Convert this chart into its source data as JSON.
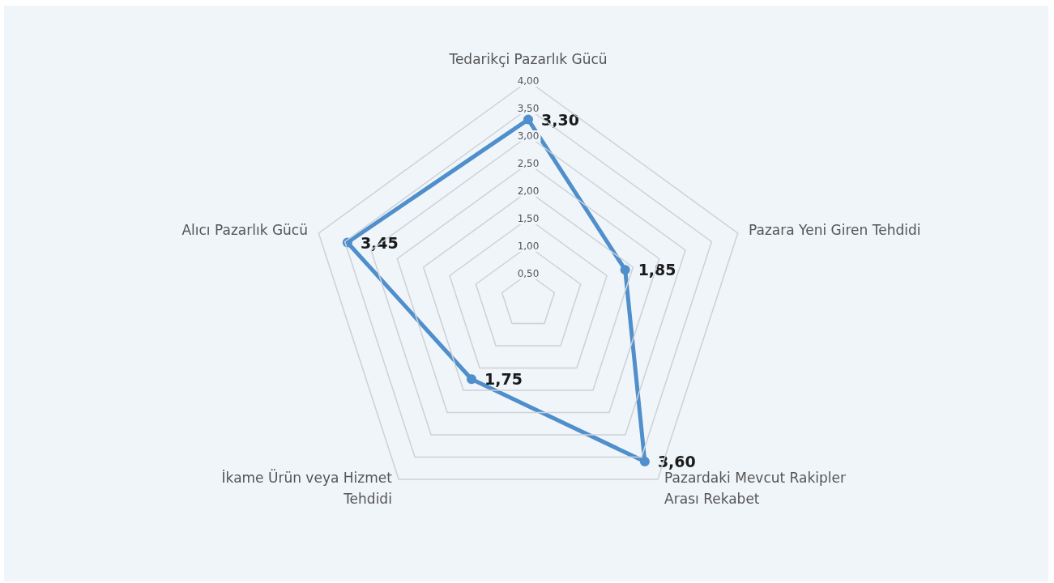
{
  "chart_data": {
    "type": "radar",
    "categories": [
      "Tedarikçi Pazarlık Gücü",
      "Pazara Yeni Giren Tehdidi",
      "Pazardaki Mevcut Rakipler Arası Rekabet",
      "İkame Ürün veya Hizmet Tehdidi",
      "Alıcı Pazarlık Gücü"
    ],
    "series": [
      {
        "color": "#4f8fcb",
        "values": [
          3.3,
          1.85,
          3.6,
          1.75,
          3.45
        ],
        "value_labels": [
          "3,30",
          "1,85",
          "3,60",
          "1,75",
          "3,45"
        ]
      }
    ],
    "ylim": [
      0,
      4
    ],
    "yticks": [
      {
        "value": 0.5,
        "label": "0,50"
      },
      {
        "value": 1,
        "label": "1,00"
      },
      {
        "value": 1.5,
        "label": "1,50"
      },
      {
        "value": 2,
        "label": "2,00"
      },
      {
        "value": 2.5,
        "label": "2,50"
      },
      {
        "value": 3,
        "label": "3,00"
      },
      {
        "value": 3.5,
        "label": "3,50"
      },
      {
        "value": 4,
        "label": "4,00"
      }
    ],
    "marker": "circle"
  }
}
